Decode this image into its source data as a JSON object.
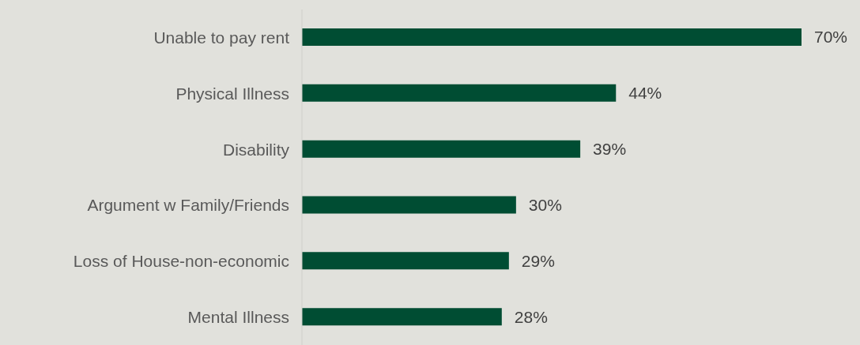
{
  "chart_data": {
    "type": "bar",
    "orientation": "horizontal",
    "categories": [
      "Unable to pay rent",
      "Physical Illness",
      "Disability",
      "Argument w Family/Friends",
      "Loss of House-non-economic",
      "Mental Illness"
    ],
    "values": [
      70,
      44,
      39,
      30,
      29,
      28
    ],
    "value_labels": [
      "70%",
      "44%",
      "39%",
      "30%",
      "29%",
      "28%"
    ],
    "color": "#004d33"
  }
}
